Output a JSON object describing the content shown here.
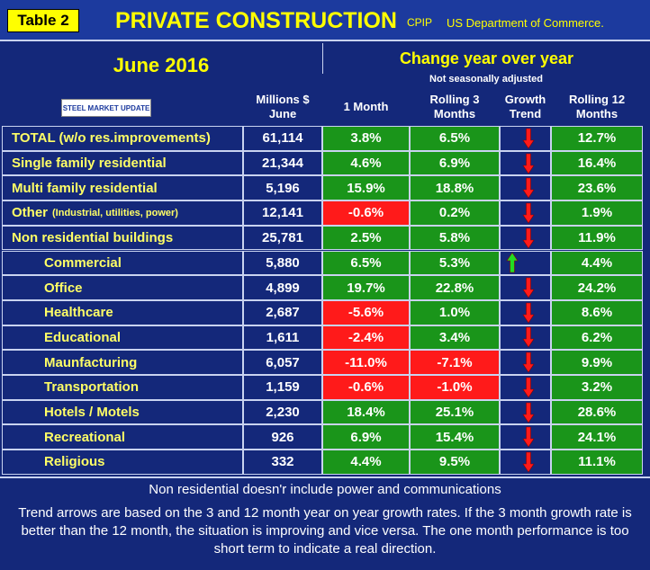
{
  "header": {
    "table_label": "Table 2",
    "title": "PRIVATE CONSTRUCTION",
    "tag": "CPIP",
    "source": "US Department of Commerce."
  },
  "period": "June 2016",
  "change_heading": "Change year over year",
  "adjustment": "Not seasonally adjusted",
  "logo": "STEEL MARKET UPDATE",
  "columns": {
    "millions": "Millions $ June",
    "m1": "1 Month",
    "r3": "Rolling 3 Months",
    "trend": "Growth Trend",
    "r12": "Rolling 12 Months"
  },
  "rows": [
    {
      "name": "TOTAL (w/o res.improvements)",
      "millions": "61,114",
      "m1": "3.8%",
      "r3": "6.5%",
      "trend": "down",
      "r12": "12.7%"
    },
    {
      "name": "Single family residential",
      "millions": "21,344",
      "m1": "4.6%",
      "r3": "6.9%",
      "trend": "down",
      "r12": "16.4%"
    },
    {
      "name": "Multi family residential",
      "millions": "5,196",
      "m1": "15.9%",
      "r3": "18.8%",
      "trend": "down",
      "r12": "23.6%"
    },
    {
      "name": "Other",
      "note": "(Industrial, utilities, power)",
      "millions": "12,141",
      "m1": "-0.6%",
      "r3": "0.2%",
      "trend": "down",
      "r12": "1.9%"
    },
    {
      "name": "Non residential buildings",
      "millions": "25,781",
      "m1": "2.5%",
      "r3": "5.8%",
      "trend": "down",
      "r12": "11.9%"
    },
    {
      "name": "Commercial",
      "sub": true,
      "millions": "5,880",
      "m1": "6.5%",
      "r3": "5.3%",
      "trend": "up",
      "r12": "4.4%"
    },
    {
      "name": "Office",
      "sub": true,
      "millions": "4,899",
      "m1": "19.7%",
      "r3": "22.8%",
      "trend": "down",
      "r12": "24.2%"
    },
    {
      "name": "Healthcare",
      "sub": true,
      "millions": "2,687",
      "m1": "-5.6%",
      "r3": "1.0%",
      "trend": "down",
      "r12": "8.6%"
    },
    {
      "name": "Educational",
      "sub": true,
      "millions": "1,611",
      "m1": "-2.4%",
      "r3": "3.4%",
      "trend": "down",
      "r12": "6.2%"
    },
    {
      "name": "Maunfacturing",
      "sub": true,
      "millions": "6,057",
      "m1": "-11.0%",
      "r3": "-7.1%",
      "trend": "down",
      "r12": "9.9%"
    },
    {
      "name": "Transportation",
      "sub": true,
      "millions": "1,159",
      "m1": "-0.6%",
      "r3": "-1.0%",
      "trend": "down",
      "r12": "3.2%"
    },
    {
      "name": "Hotels / Motels",
      "sub": true,
      "millions": "2,230",
      "m1": "18.4%",
      "r3": "25.1%",
      "trend": "down",
      "r12": "28.6%"
    },
    {
      "name": "Recreational",
      "sub": true,
      "millions": "926",
      "m1": "6.9%",
      "r3": "15.4%",
      "trend": "down",
      "r12": "24.1%"
    },
    {
      "name": "Religious",
      "sub": true,
      "millions": "332",
      "m1": "4.4%",
      "r3": "9.5%",
      "trend": "down",
      "r12": "11.1%"
    }
  ],
  "footer": {
    "note": "Non residential doesn'r include power and communications",
    "explanation": "Trend arrows are based on the 3 and 12 month year on year growth rates. If the 3 month growth rate is better than the 12 month, the situation is improving and vice versa. The one month performance is too short term to indicate a real direction."
  }
}
